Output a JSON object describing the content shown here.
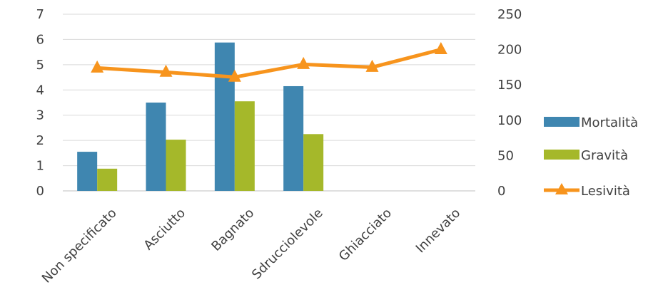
{
  "chart_data": {
    "type": "bar",
    "categories": [
      "Non specificato",
      "Asciutto",
      "Bagnato",
      "Sdrucciolevole",
      "Ghiacciato",
      "Innevato"
    ],
    "series": [
      {
        "name": "Mortalità",
        "type": "bar",
        "axis": "left",
        "color": "#3F86B0",
        "values": [
          1.55,
          3.5,
          5.88,
          4.15,
          null,
          null
        ]
      },
      {
        "name": "Gravità",
        "type": "bar",
        "axis": "left",
        "color": "#A5B82A",
        "values": [
          0.88,
          2.03,
          3.55,
          2.25,
          null,
          null
        ]
      },
      {
        "name": "Lesività",
        "type": "line",
        "axis": "right",
        "color": "#F7941D",
        "marker": "triangle",
        "values": [
          174,
          168,
          161,
          179,
          175,
          200
        ]
      }
    ],
    "y_left": {
      "min": 0,
      "max": 7,
      "ticks": [
        "0",
        "1",
        "2",
        "3",
        "4",
        "5",
        "6",
        "7"
      ]
    },
    "y_right": {
      "min": 0,
      "max": 250,
      "ticks": [
        "0",
        "50",
        "100",
        "150",
        "200",
        "250"
      ]
    },
    "grid": true,
    "legend_position": "right",
    "title": "",
    "xlabel": "",
    "ylabel": ""
  }
}
